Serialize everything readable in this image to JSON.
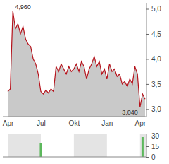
{
  "chart_data": [
    {
      "type": "area",
      "categories": [
        "Apr",
        null,
        null,
        null,
        null,
        null,
        null,
        null,
        null,
        null,
        null,
        null,
        null,
        "Jul",
        null,
        null,
        null,
        null,
        null,
        null,
        null,
        null,
        null,
        null,
        null,
        null,
        "Okt",
        null,
        null,
        null,
        null,
        null,
        null,
        null,
        null,
        null,
        null,
        null,
        null,
        "Jan",
        null,
        null,
        null,
        null,
        null,
        null,
        null,
        null,
        null,
        null,
        null,
        null,
        "Apr",
        null,
        null
      ],
      "values": [
        3.35,
        3.4,
        4.96,
        4.6,
        4.7,
        4.5,
        4.65,
        4.4,
        4.3,
        4.25,
        4.0,
        3.9,
        3.7,
        3.35,
        3.3,
        3.38,
        3.32,
        3.4,
        3.35,
        3.85,
        3.75,
        3.9,
        3.8,
        3.7,
        3.85,
        3.75,
        3.8,
        3.9,
        3.75,
        3.95,
        3.85,
        3.6,
        3.8,
        3.9,
        4.05,
        3.85,
        3.95,
        3.7,
        3.8,
        3.6,
        3.9,
        3.75,
        3.8,
        3.65,
        3.7,
        3.5,
        3.55,
        3.45,
        3.6,
        3.5,
        3.85,
        3.7,
        3.04,
        3.3,
        3.2
      ],
      "color": "#b5121b",
      "ylim": [
        2.85,
        5.12
      ],
      "yticks": [
        {
          "value": 3,
          "label": "3,0"
        },
        {
          "value": 3.5,
          "label": "3,5"
        },
        {
          "value": 4,
          "label": "4,0"
        },
        {
          "value": 4.5,
          "label": "4,5"
        },
        {
          "value": 5,
          "label": "5,0"
        }
      ],
      "annotations": [
        {
          "text": "4,960",
          "index": 2,
          "value": 4.96
        },
        {
          "text": "3,040",
          "index": 52,
          "value": 3.04
        }
      ]
    },
    {
      "type": "bar",
      "categories": [
        "Apr",
        null,
        null,
        null,
        null,
        null,
        null,
        null,
        null,
        null,
        null,
        null,
        null,
        "Jul",
        null,
        null,
        null,
        null,
        null,
        null,
        null,
        null,
        null,
        null,
        null,
        null,
        "Okt",
        null,
        null,
        null,
        null,
        null,
        null,
        null,
        null,
        null,
        null,
        null,
        null,
        "Jan",
        null,
        null,
        null,
        null,
        null,
        null,
        null,
        null,
        null,
        null,
        null,
        null,
        "Apr",
        null,
        null
      ],
      "values": [
        0,
        0,
        0,
        0,
        0,
        0,
        0,
        0,
        0,
        0,
        0,
        0,
        0,
        20,
        0,
        0,
        0,
        0,
        0,
        0,
        0,
        0,
        0,
        0,
        0,
        0,
        0,
        0,
        0,
        0,
        0,
        0,
        0,
        0,
        0,
        0,
        0,
        0,
        0,
        0,
        0,
        0,
        0,
        0,
        0,
        0,
        0,
        0,
        0,
        0,
        0,
        0,
        0,
        28,
        0
      ],
      "color": "#5cb85c",
      "ylim": [
        0,
        33
      ],
      "yticks": [
        0,
        15,
        30
      ],
      "grid": true,
      "tick_labels": "y"
    }
  ]
}
